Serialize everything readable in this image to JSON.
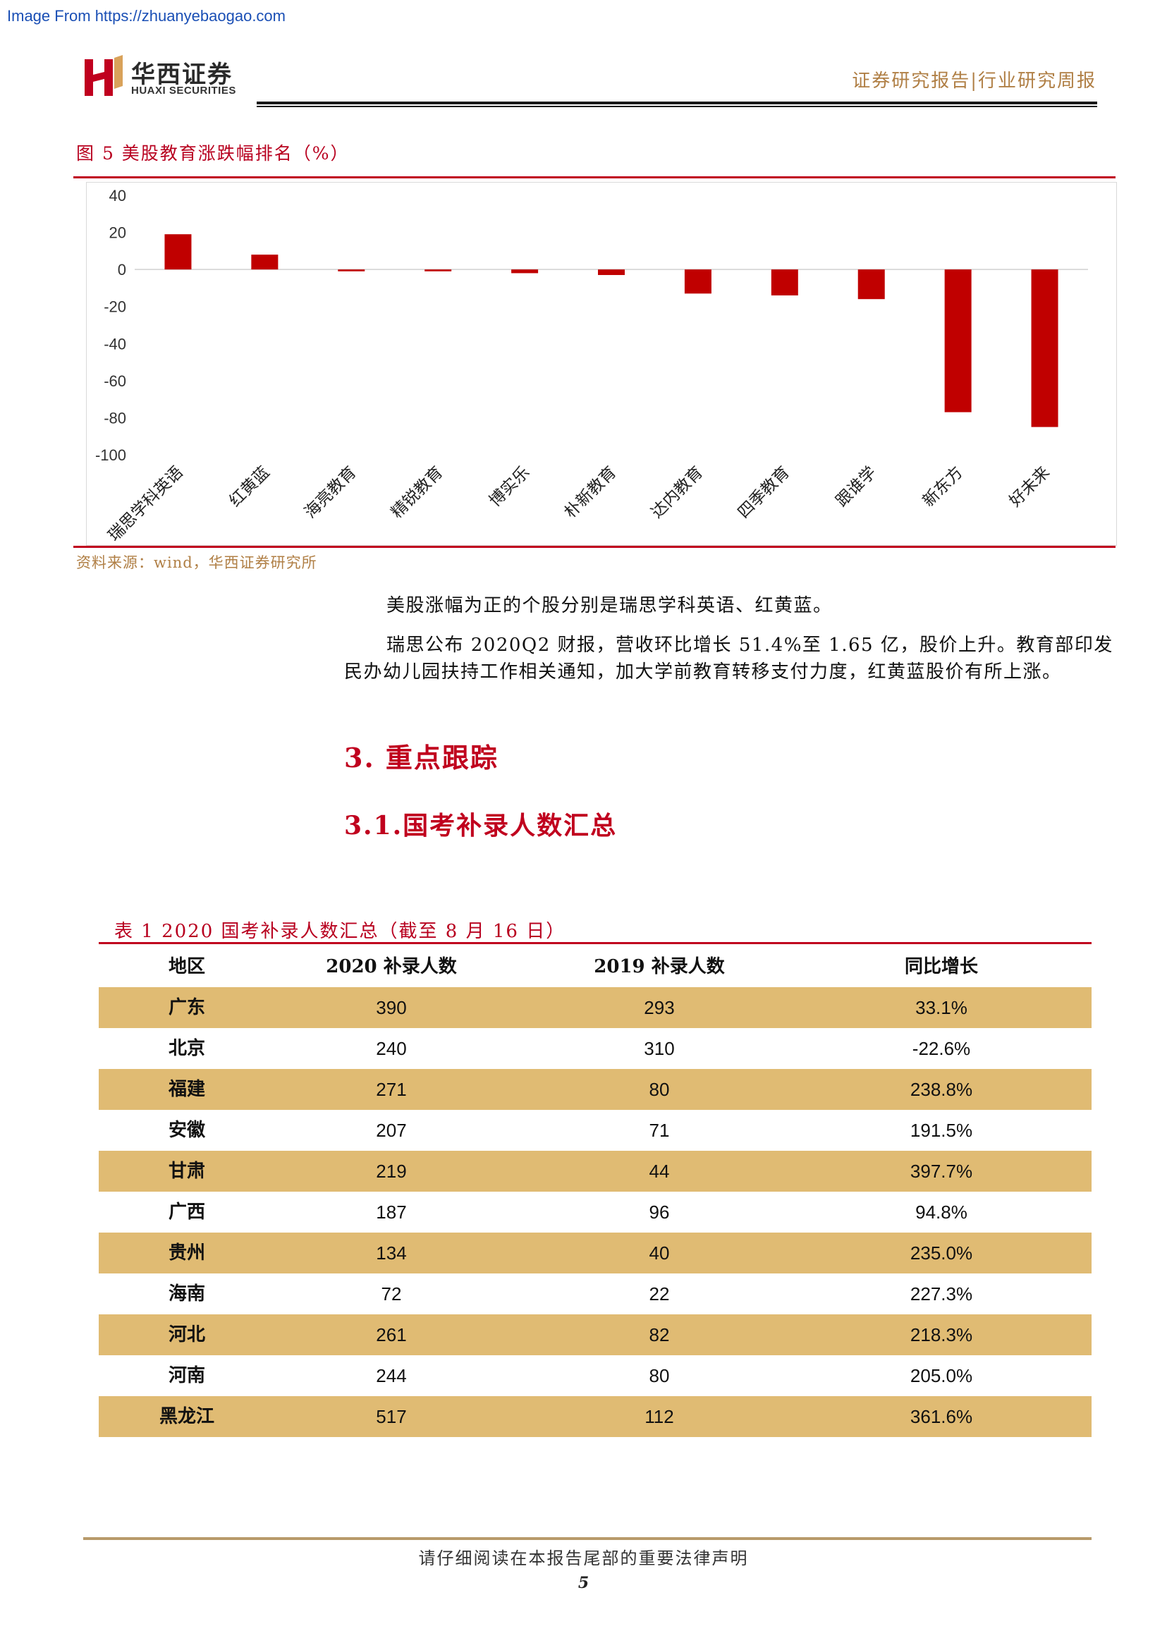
{
  "watermark": "Image From https://zhuanyebaogao.com",
  "header": {
    "brand_cn": "华西证券",
    "brand_en": "HUAXI SECURITIES",
    "report_type": "证券研究报告|行业研究周报"
  },
  "figure": {
    "title": "图 5  美股教育涨跌幅排名（%）",
    "source": "资料来源：wind，华西证券研究所"
  },
  "chart_data": {
    "type": "bar",
    "categories": [
      "瑞思学科英语",
      "红黄蓝",
      "海亮教育",
      "精锐教育",
      "博实乐",
      "朴新教育",
      "达内教育",
      "四季教育",
      "跟谁学",
      "新东方",
      "好未来"
    ],
    "values": [
      19,
      8,
      -1,
      -1,
      -2,
      -3,
      -13,
      -14,
      -16,
      -77,
      -85
    ],
    "ylim": [
      -100,
      40
    ],
    "yticks": [
      40,
      20,
      0,
      -20,
      -40,
      -60,
      -80,
      -100
    ],
    "bar_color": "#c00000",
    "grid": false
  },
  "body": {
    "para1": "美股涨幅为正的个股分别是瑞思学科英语、红黄蓝。",
    "para2_line1": "瑞思公布 2020Q2 财报，营收环比增长 51.4%至 1.65 亿，股价上升。教育部印发",
    "para2_line2": "民办幼儿园扶持工作相关通知，加大学前教育转移支付力度，红黄蓝股价有所上涨。",
    "h1": "3. 重点跟踪",
    "h2": "3.1.国考补录人数汇总"
  },
  "table": {
    "title": "表 1   2020 国考补录人数汇总（截至 8 月 16 日）",
    "headers": [
      "地区",
      "2020 补录人数",
      "2019 补录人数",
      "同比增长"
    ],
    "rows": [
      [
        "广东",
        "390",
        "293",
        "33.1%"
      ],
      [
        "北京",
        "240",
        "310",
        "-22.6%"
      ],
      [
        "福建",
        "271",
        "80",
        "238.8%"
      ],
      [
        "安徽",
        "207",
        "71",
        "191.5%"
      ],
      [
        "甘肃",
        "219",
        "44",
        "397.7%"
      ],
      [
        "广西",
        "187",
        "96",
        "94.8%"
      ],
      [
        "贵州",
        "134",
        "40",
        "235.0%"
      ],
      [
        "海南",
        "72",
        "22",
        "227.3%"
      ],
      [
        "河北",
        "261",
        "82",
        "218.3%"
      ],
      [
        "河南",
        "244",
        "80",
        "205.0%"
      ],
      [
        "黑龙江",
        "517",
        "112",
        "361.6%"
      ]
    ]
  },
  "footer": {
    "notice": "请仔细阅读在本报告尾部的重要法律声明",
    "page": "5"
  }
}
